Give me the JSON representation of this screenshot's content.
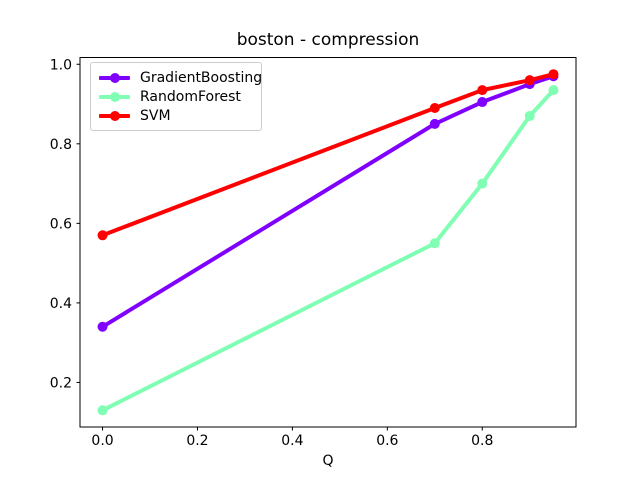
{
  "title": "boston - compression",
  "colors": {
    "background": "#ffffff",
    "spine": "#000000",
    "text": "#000000",
    "legend_border": "#cccccc"
  },
  "chart_data": {
    "type": "line",
    "title": "boston - compression",
    "xlabel": "Q",
    "ylabel": "",
    "x": [
      0.0,
      0.7,
      0.8,
      0.9,
      0.95
    ],
    "series": [
      {
        "name": "GradientBoosting",
        "color": "#8000FF",
        "values": [
          0.34,
          0.85,
          0.905,
          0.95,
          0.97
        ]
      },
      {
        "name": "RandomForest",
        "color": "#80FFB4",
        "values": [
          0.13,
          0.55,
          0.7,
          0.87,
          0.935
        ]
      },
      {
        "name": "SVM",
        "color": "#FF0000",
        "values": [
          0.57,
          0.89,
          0.935,
          0.96,
          0.975
        ]
      }
    ],
    "xlim": [
      -0.0475,
      0.9975
    ],
    "ylim": [
      0.088,
      1.017
    ],
    "xticks": [
      0.0,
      0.2,
      0.4,
      0.6,
      0.8
    ],
    "yticks": [
      0.2,
      0.4,
      0.6,
      0.8,
      1.0
    ],
    "grid": false,
    "marker": "o",
    "legend_position": "upper left"
  }
}
